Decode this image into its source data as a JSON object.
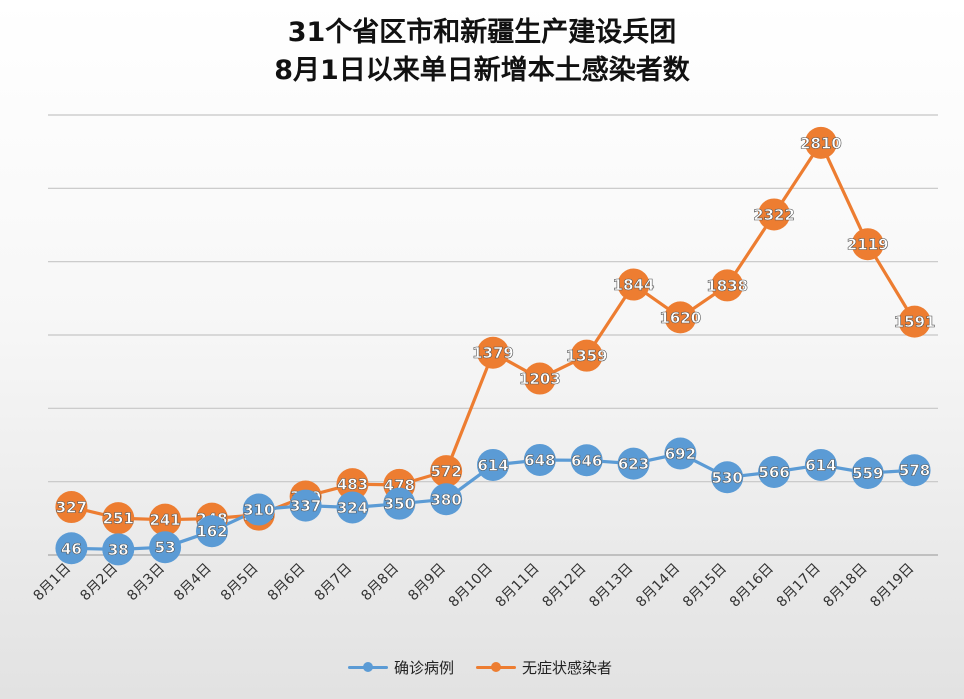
{
  "chart_data": {
    "type": "line",
    "title_line1": "31个省区市和新疆生产建设兵团",
    "title_line2": "8月1日以来单日新增本土感染者数",
    "categories": [
      "8月1日",
      "8月2日",
      "8月3日",
      "8月4日",
      "8月5日",
      "8月6日",
      "8月7日",
      "8月8日",
      "8月9日",
      "8月10日",
      "8月11日",
      "8月12日",
      "8月13日",
      "8月14日",
      "8月15日",
      "8月16日",
      "8月17日",
      "8月18日",
      "8月19日"
    ],
    "series": [
      {
        "name": "确诊病例",
        "color": "#5b9bd5",
        "values": [
          46,
          38,
          53,
          162,
          310,
          337,
          324,
          350,
          380,
          614,
          648,
          646,
          623,
          692,
          530,
          566,
          614,
          559,
          578
        ]
      },
      {
        "name": "无症状感染者",
        "color": "#ed7d31",
        "values": [
          327,
          251,
          241,
          248,
          275,
          399,
          483,
          478,
          572,
          1379,
          1203,
          1359,
          1844,
          1620,
          1838,
          2322,
          2810,
          2119,
          1591
        ]
      }
    ],
    "ylim": [
      0,
      3000
    ],
    "grid": true,
    "legend_position": "bottom"
  }
}
